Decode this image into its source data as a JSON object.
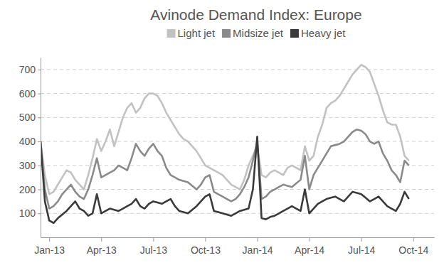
{
  "chart_data": {
    "type": "line",
    "title": "Avinode Demand Index: Europe",
    "x": [
      -0.5,
      -0.25,
      0,
      0.25,
      0.5,
      0.75,
      1,
      1.25,
      1.5,
      1.75,
      2,
      2.25,
      2.5,
      2.75,
      3,
      3.25,
      3.5,
      3.75,
      4,
      4.25,
      4.5,
      4.75,
      5,
      5.25,
      5.5,
      5.75,
      6,
      6.25,
      6.5,
      6.75,
      7,
      7.25,
      7.5,
      7.75,
      8,
      8.25,
      8.5,
      8.75,
      9,
      9.25,
      9.5,
      9.75,
      10,
      10.25,
      10.5,
      10.75,
      11,
      11.25,
      11.5,
      11.75,
      12,
      12.25,
      12.5,
      12.75,
      13,
      13.25,
      13.5,
      13.75,
      14,
      14.25,
      14.5,
      14.75,
      15,
      15.25,
      15.5,
      15.75,
      16,
      16.25,
      16.5,
      16.75,
      17,
      17.25,
      17.5,
      17.75,
      18,
      18.25,
      18.5,
      18.75,
      19,
      19.25,
      19.5,
      19.75,
      20,
      20.25,
      20.5,
      20.75
    ],
    "series": [
      {
        "name": "Light jet",
        "color": "#c2c2c2",
        "values": [
          400,
          260,
          180,
          190,
          220,
          250,
          280,
          270,
          240,
          220,
          200,
          260,
          330,
          410,
          360,
          400,
          450,
          380,
          440,
          500,
          540,
          560,
          520,
          540,
          580,
          600,
          600,
          590,
          560,
          520,
          490,
          460,
          430,
          410,
          400,
          380,
          360,
          330,
          300,
          290,
          280,
          270,
          260,
          240,
          220,
          210,
          200,
          240,
          300,
          340,
          380,
          260,
          250,
          270,
          280,
          270,
          260,
          290,
          300,
          290,
          280,
          380,
          320,
          340,
          420,
          470,
          540,
          560,
          570,
          590,
          620,
          650,
          680,
          700,
          720,
          710,
          690,
          640,
          590,
          530,
          480,
          470,
          470,
          420,
          340,
          320
        ]
      },
      {
        "name": "Midsize jet",
        "color": "#8a8a8a",
        "values": [
          400,
          200,
          120,
          130,
          150,
          180,
          200,
          220,
          190,
          170,
          160,
          200,
          260,
          330,
          250,
          260,
          270,
          280,
          300,
          290,
          280,
          330,
          390,
          360,
          340,
          370,
          390,
          360,
          340,
          290,
          260,
          250,
          240,
          235,
          230,
          215,
          200,
          220,
          250,
          260,
          190,
          180,
          170,
          160,
          150,
          160,
          180,
          210,
          250,
          320,
          400,
          160,
          170,
          190,
          200,
          210,
          220,
          215,
          210,
          225,
          240,
          340,
          200,
          260,
          290,
          320,
          350,
          380,
          385,
          390,
          400,
          420,
          440,
          450,
          445,
          430,
          400,
          390,
          400,
          350,
          320,
          280,
          260,
          230,
          320,
          300
        ]
      },
      {
        "name": "Heavy jet",
        "color": "#3a3a3a",
        "values": [
          400,
          150,
          70,
          60,
          80,
          95,
          110,
          130,
          150,
          120,
          110,
          90,
          100,
          180,
          100,
          110,
          120,
          115,
          110,
          120,
          130,
          140,
          160,
          130,
          120,
          140,
          150,
          145,
          140,
          150,
          160,
          130,
          110,
          105,
          100,
          115,
          130,
          150,
          170,
          180,
          110,
          105,
          100,
          95,
          90,
          100,
          110,
          115,
          120,
          200,
          420,
          80,
          75,
          85,
          90,
          100,
          110,
          120,
          130,
          120,
          110,
          200,
          100,
          120,
          140,
          150,
          160,
          165,
          170,
          160,
          150,
          170,
          190,
          185,
          180,
          165,
          150,
          160,
          170,
          150,
          130,
          120,
          110,
          140,
          190,
          160
        ]
      }
    ],
    "xlim": [
      -0.5,
      22.2
    ],
    "xticks": [
      {
        "value": 0,
        "label": "Jan-13"
      },
      {
        "value": 3,
        "label": "Apr-13"
      },
      {
        "value": 6,
        "label": "Jul-13"
      },
      {
        "value": 9,
        "label": "Oct-13"
      },
      {
        "value": 12,
        "label": "Jan-14"
      },
      {
        "value": 15,
        "label": "Apr-14"
      },
      {
        "value": 18,
        "label": "Jul-14"
      },
      {
        "value": 21,
        "label": "Oct-14"
      }
    ],
    "ylim": [
      0,
      750
    ],
    "yticks": [
      100,
      200,
      300,
      400,
      500,
      600,
      700
    ],
    "grid": true,
    "legend": "top"
  }
}
